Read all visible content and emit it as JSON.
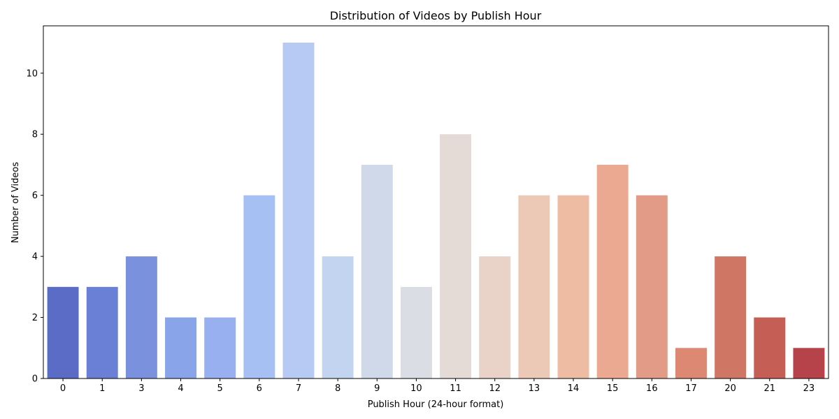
{
  "chart_data": {
    "type": "bar",
    "title": "Distribution of Videos by Publish Hour",
    "xlabel": "Publish Hour (24-hour format)",
    "ylabel": "Number of Videos",
    "categories": [
      "0",
      "1",
      "3",
      "4",
      "5",
      "6",
      "7",
      "8",
      "9",
      "10",
      "11",
      "12",
      "13",
      "14",
      "15",
      "16",
      "17",
      "20",
      "21",
      "23"
    ],
    "values": [
      3,
      3,
      4,
      2,
      2,
      6,
      11,
      4,
      7,
      3,
      8,
      4,
      6,
      6,
      7,
      6,
      1,
      4,
      2,
      1
    ],
    "colors": [
      "#5b6cc7",
      "#6a80d6",
      "#7a92de",
      "#8aa4ea",
      "#98b0f0",
      "#a6c0f4",
      "#b6caf4",
      "#c3d4f0",
      "#cfd9ea",
      "#dadde4",
      "#e4dbd7",
      "#e9d2c8",
      "#ebc9b6",
      "#eebca3",
      "#eba992",
      "#e19b86",
      "#dc8872",
      "#d07664",
      "#c55e55",
      "#b6434a"
    ],
    "yticks": [
      0,
      2,
      4,
      6,
      8,
      10
    ],
    "ylim": [
      0,
      11.55
    ],
    "grid": false,
    "legend": "none"
  }
}
